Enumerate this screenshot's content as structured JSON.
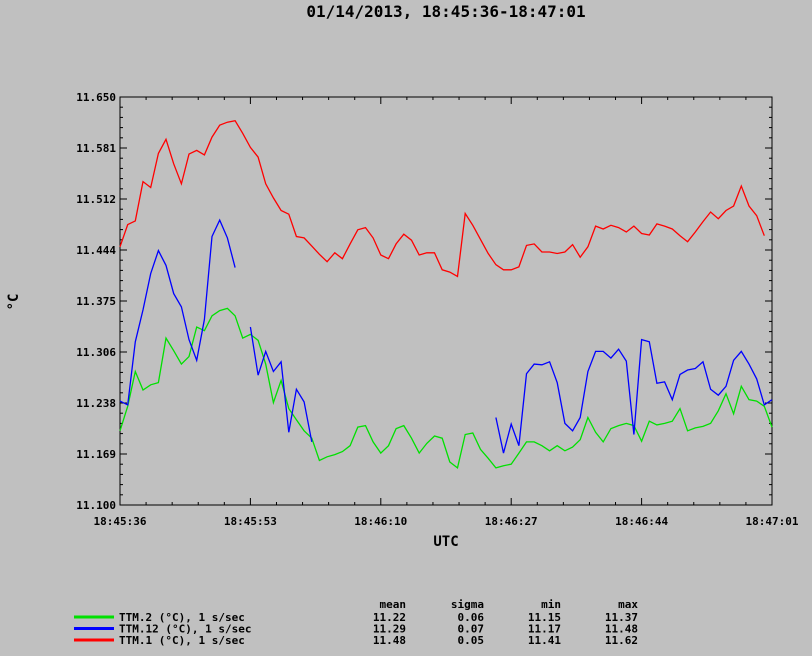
{
  "chart_data": {
    "type": "line",
    "title": "01/14/2013, 18:45:36-18:47:01",
    "xlabel": "UTC",
    "ylabel": "°C",
    "ylim": [
      11.1,
      11.65
    ],
    "yticks": [
      "11.650",
      "11.581",
      "11.512",
      "11.444",
      "11.375",
      "11.306",
      "11.238",
      "11.169",
      "11.100"
    ],
    "xticks": [
      "18:45:36",
      "18:45:53",
      "18:46:10",
      "18:46:27",
      "18:46:44",
      "18:47:01"
    ],
    "x_start_label": "18:45:36",
    "x_step_sec": 1,
    "grid": false,
    "legend_position": "bottom-left",
    "stats_headers": [
      "mean",
      "sigma",
      "min",
      "max"
    ],
    "series": [
      {
        "name": "TTM.2 (°C), 1 s/sec",
        "color": "#00e000",
        "stats": [
          "11.22",
          "0.06",
          "11.15",
          "11.37"
        ],
        "values": [
          11.2,
          11.233,
          11.28,
          11.255,
          11.262,
          11.265,
          11.325,
          11.308,
          11.29,
          11.3,
          11.34,
          11.335,
          11.355,
          11.362,
          11.365,
          11.355,
          11.325,
          11.33,
          11.322,
          11.29,
          11.238,
          11.268,
          11.23,
          11.215,
          11.2,
          11.19,
          11.16,
          11.165,
          11.168,
          11.172,
          11.18,
          11.205,
          11.207,
          11.185,
          11.17,
          11.18,
          11.203,
          11.207,
          11.19,
          11.17,
          11.183,
          11.193,
          11.19,
          11.158,
          11.15,
          11.195,
          11.197,
          11.175,
          11.163,
          11.15,
          11.153,
          11.155,
          11.17,
          11.185,
          11.185,
          11.18,
          11.173,
          11.18,
          11.173,
          11.178,
          11.188,
          11.218,
          11.198,
          11.185,
          11.203,
          11.207,
          11.21,
          11.207,
          11.186,
          11.213,
          11.208,
          11.21,
          11.213,
          11.23,
          11.2,
          11.204,
          11.206,
          11.21,
          11.227,
          11.25,
          11.223,
          11.26,
          11.242,
          11.24,
          11.233,
          11.205
        ]
      },
      {
        "name": "TTM.12 (°C), 1 s/sec",
        "color": "#0000ff",
        "stats": [
          "11.29",
          "0.07",
          "11.17",
          "11.48"
        ],
        "values": [
          11.24,
          11.235,
          11.32,
          11.363,
          11.412,
          11.443,
          11.423,
          11.385,
          11.367,
          11.323,
          11.295,
          11.35,
          11.462,
          11.484,
          11.46,
          11.42,
          null,
          11.34,
          11.275,
          11.307,
          11.28,
          11.293,
          11.198,
          11.256,
          11.239,
          11.185,
          null,
          null,
          null,
          null,
          null,
          null,
          null,
          null,
          null,
          null,
          null,
          null,
          null,
          null,
          null,
          null,
          null,
          null,
          null,
          null,
          null,
          null,
          null,
          11.218,
          11.17,
          11.209,
          11.18,
          11.277,
          11.29,
          11.289,
          11.293,
          11.265,
          11.21,
          11.2,
          11.218,
          11.28,
          11.307,
          11.307,
          11.298,
          11.31,
          11.294,
          11.195,
          11.323,
          11.32,
          11.264,
          11.266,
          11.242,
          11.276,
          11.282,
          11.284,
          11.293,
          11.256,
          11.248,
          11.26,
          11.295,
          11.307,
          11.29,
          11.27,
          11.235,
          11.242
        ]
      },
      {
        "name": "TTM.1 (°C), 1 s/sec",
        "color": "#ff0000",
        "stats": [
          "11.48",
          "0.05",
          "11.41",
          "11.62"
        ],
        "values": [
          11.448,
          11.478,
          11.483,
          11.536,
          11.528,
          11.574,
          11.593,
          11.56,
          11.533,
          11.573,
          11.578,
          11.572,
          11.596,
          11.612,
          11.616,
          11.618,
          11.601,
          11.582,
          11.569,
          11.533,
          11.514,
          11.497,
          11.492,
          11.462,
          11.46,
          11.449,
          11.438,
          11.428,
          11.44,
          11.432,
          11.452,
          11.471,
          11.474,
          11.46,
          11.437,
          11.432,
          11.452,
          11.465,
          11.457,
          11.437,
          11.44,
          11.44,
          11.417,
          11.414,
          11.408,
          11.493,
          11.477,
          11.458,
          11.439,
          11.424,
          11.417,
          11.417,
          11.421,
          11.45,
          11.452,
          11.441,
          11.441,
          11.439,
          11.441,
          11.451,
          11.434,
          11.448,
          11.476,
          11.472,
          11.477,
          11.474,
          11.468,
          11.476,
          11.466,
          11.464,
          11.479,
          11.476,
          11.472,
          11.463,
          11.455,
          11.468,
          11.482,
          11.495,
          11.486,
          11.497,
          11.503,
          11.53,
          11.503,
          11.49,
          11.463
        ]
      }
    ]
  }
}
